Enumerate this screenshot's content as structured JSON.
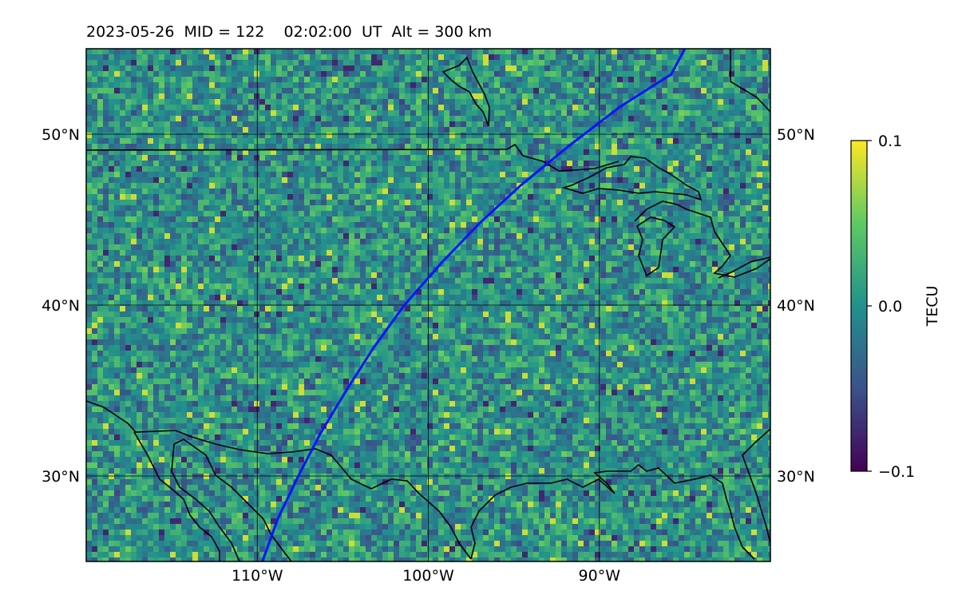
{
  "title": "2023-05-26  MID = 122    02:02:00  UT  Alt = 300 km",
  "map": {
    "lon_range": [
      -120,
      -80
    ],
    "lat_range": [
      25,
      55
    ],
    "gridlines": true,
    "lon_ticks": [
      {
        "lon": -110,
        "label": "110°W"
      },
      {
        "lon": -100,
        "label": "100°W"
      },
      {
        "lon": -90,
        "label": "90°W"
      }
    ],
    "lat_ticks": [
      {
        "lat": 30,
        "label": "30°N"
      },
      {
        "lat": 40,
        "label": "40°N"
      },
      {
        "lat": 50,
        "label": "50°N"
      }
    ],
    "track_color": "#0a14ff",
    "track": [
      [
        -109.7,
        25.0
      ],
      [
        -108.8,
        27.5
      ],
      [
        -107.6,
        30.0
      ],
      [
        -106.3,
        32.5
      ],
      [
        -104.8,
        35.0
      ],
      [
        -103.2,
        37.5
      ],
      [
        -101.4,
        40.0
      ],
      [
        -99.2,
        42.5
      ],
      [
        -97.0,
        44.8
      ],
      [
        -94.6,
        47.0
      ],
      [
        -91.8,
        49.3
      ],
      [
        -88.8,
        51.6
      ],
      [
        -85.8,
        53.5
      ],
      [
        -85.0,
        55.0
      ]
    ]
  },
  "colorbar": {
    "label": "TECU",
    "cmap": "viridis",
    "min": -0.1,
    "max": 0.1,
    "ticks": [
      {
        "value": 0.1,
        "label": "0.1"
      },
      {
        "value": 0.0,
        "label": "0.0"
      },
      {
        "value": -0.1,
        "label": "−0.1"
      }
    ]
  }
}
